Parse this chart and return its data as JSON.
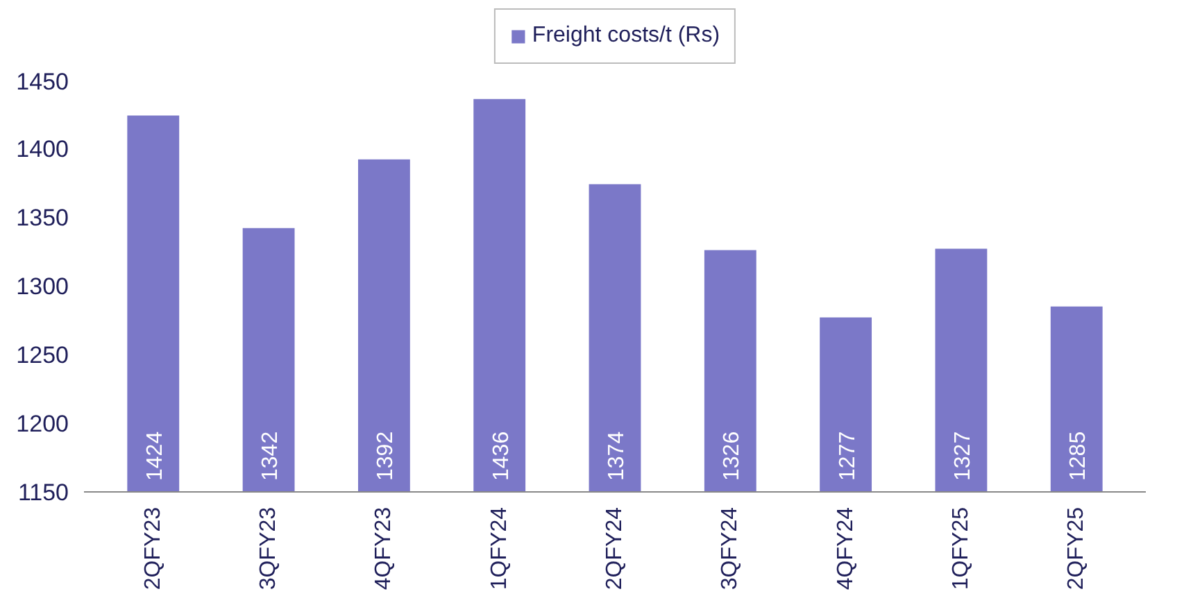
{
  "chart_data": {
    "type": "bar",
    "categories": [
      "2QFY23",
      "3QFY23",
      "4QFY23",
      "1QFY24",
      "2QFY24",
      "3QFY24",
      "4QFY24",
      "1QFY25",
      "2QFY25"
    ],
    "series": [
      {
        "name": "Freight costs/t (Rs)",
        "color": "#7b78c8",
        "values": [
          1424,
          1342,
          1392,
          1436,
          1374,
          1326,
          1277,
          1327,
          1285
        ]
      }
    ],
    "ylim": [
      1150,
      1450
    ],
    "yticks": [
      1150,
      1200,
      1250,
      1300,
      1350,
      1400,
      1450
    ],
    "data_labels": true,
    "legend": "top",
    "grid": false
  }
}
